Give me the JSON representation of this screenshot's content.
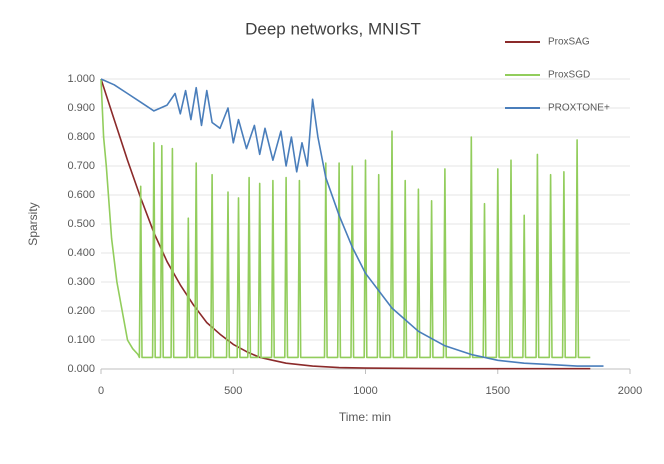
{
  "chart_data": {
    "type": "line",
    "title": "Deep networks, MNIST",
    "x_label": "Time: min",
    "y_label": "Sparsity",
    "xlim": [
      0,
      2000
    ],
    "xticks": [
      0,
      500,
      1000,
      1500,
      2000
    ],
    "ylim": [
      0,
      1
    ],
    "yticks": [
      {
        "value": 0,
        "label": "0.000"
      },
      {
        "value": 0.1,
        "label": "0.100"
      },
      {
        "value": 0.2,
        "label": "0.200"
      },
      {
        "value": 0.3,
        "label": "0.300"
      },
      {
        "value": 0.4,
        "label": "0.400"
      },
      {
        "value": 0.5,
        "label": "0.500"
      },
      {
        "value": 0.6,
        "label": "0.600"
      },
      {
        "value": 0.7,
        "label": "0.700"
      },
      {
        "value": 0.8,
        "label": "0.800"
      },
      {
        "value": 0.9,
        "label": "0.900"
      },
      {
        "value": 1,
        "label": "1.000"
      }
    ],
    "grid": true,
    "legend": "top-right",
    "series": [
      {
        "name": "ProxSAG",
        "color": "#8b2a2a",
        "x": [
          0,
          50,
          100,
          150,
          200,
          250,
          300,
          350,
          400,
          450,
          500,
          550,
          600,
          650,
          700,
          800,
          900,
          1000,
          1200,
          1400,
          1600,
          1800,
          1850
        ],
        "values": [
          1.0,
          0.86,
          0.72,
          0.59,
          0.47,
          0.37,
          0.29,
          0.22,
          0.16,
          0.12,
          0.085,
          0.06,
          0.04,
          0.03,
          0.02,
          0.01,
          0.005,
          0.003,
          0.002,
          0.001,
          0.001,
          0.001,
          0.001
        ]
      },
      {
        "name": "ProxSGD",
        "color": "#92cd5c",
        "x": [
          0,
          10,
          20,
          40,
          60,
          80,
          100,
          120,
          140,
          145,
          150,
          155,
          195,
          200,
          205,
          225,
          230,
          235,
          265,
          270,
          275,
          325,
          330,
          335,
          355,
          360,
          365,
          415,
          420,
          425,
          475,
          480,
          485,
          515,
          520,
          525,
          555,
          560,
          565,
          595,
          600,
          605,
          645,
          650,
          655,
          695,
          700,
          705,
          745,
          750,
          755,
          845,
          850,
          855,
          895,
          900,
          905,
          945,
          950,
          955,
          995,
          1000,
          1005,
          1045,
          1050,
          1055,
          1095,
          1100,
          1105,
          1145,
          1150,
          1155,
          1195,
          1200,
          1205,
          1245,
          1250,
          1255,
          1295,
          1300,
          1305,
          1395,
          1400,
          1405,
          1445,
          1450,
          1455,
          1495,
          1500,
          1505,
          1545,
          1550,
          1555,
          1595,
          1600,
          1605,
          1645,
          1650,
          1655,
          1695,
          1700,
          1705,
          1745,
          1750,
          1755,
          1795,
          1800,
          1805,
          1850
        ],
        "values": [
          1.0,
          0.8,
          0.7,
          0.45,
          0.3,
          0.2,
          0.1,
          0.07,
          0.05,
          0.04,
          0.63,
          0.04,
          0.04,
          0.78,
          0.04,
          0.04,
          0.77,
          0.04,
          0.04,
          0.76,
          0.04,
          0.04,
          0.52,
          0.04,
          0.04,
          0.71,
          0.04,
          0.04,
          0.67,
          0.04,
          0.04,
          0.61,
          0.04,
          0.04,
          0.59,
          0.04,
          0.04,
          0.66,
          0.04,
          0.04,
          0.64,
          0.04,
          0.04,
          0.65,
          0.04,
          0.04,
          0.66,
          0.04,
          0.04,
          0.65,
          0.04,
          0.04,
          0.71,
          0.04,
          0.04,
          0.71,
          0.04,
          0.04,
          0.7,
          0.04,
          0.04,
          0.72,
          0.04,
          0.04,
          0.67,
          0.04,
          0.04,
          0.82,
          0.04,
          0.04,
          0.65,
          0.04,
          0.04,
          0.62,
          0.04,
          0.04,
          0.58,
          0.04,
          0.04,
          0.69,
          0.04,
          0.04,
          0.8,
          0.04,
          0.04,
          0.57,
          0.04,
          0.04,
          0.69,
          0.04,
          0.04,
          0.72,
          0.04,
          0.04,
          0.53,
          0.04,
          0.04,
          0.74,
          0.04,
          0.04,
          0.67,
          0.04,
          0.04,
          0.68,
          0.04,
          0.04,
          0.79,
          0.04,
          0.04
        ]
      },
      {
        "name": "PROXTONE+",
        "color": "#4a7ebb",
        "x": [
          0,
          50,
          100,
          150,
          200,
          250,
          280,
          300,
          320,
          340,
          360,
          380,
          400,
          420,
          450,
          480,
          500,
          520,
          550,
          580,
          600,
          620,
          650,
          680,
          700,
          720,
          740,
          760,
          780,
          800,
          820,
          850,
          900,
          950,
          1000,
          1100,
          1200,
          1300,
          1400,
          1500,
          1600,
          1700,
          1800,
          1900
        ],
        "values": [
          1.0,
          0.98,
          0.95,
          0.92,
          0.89,
          0.91,
          0.95,
          0.88,
          0.96,
          0.86,
          0.97,
          0.84,
          0.96,
          0.85,
          0.83,
          0.9,
          0.78,
          0.86,
          0.76,
          0.84,
          0.74,
          0.83,
          0.72,
          0.82,
          0.7,
          0.8,
          0.68,
          0.78,
          0.7,
          0.93,
          0.8,
          0.66,
          0.53,
          0.42,
          0.33,
          0.21,
          0.13,
          0.08,
          0.05,
          0.03,
          0.02,
          0.015,
          0.01,
          0.01
        ]
      }
    ]
  }
}
